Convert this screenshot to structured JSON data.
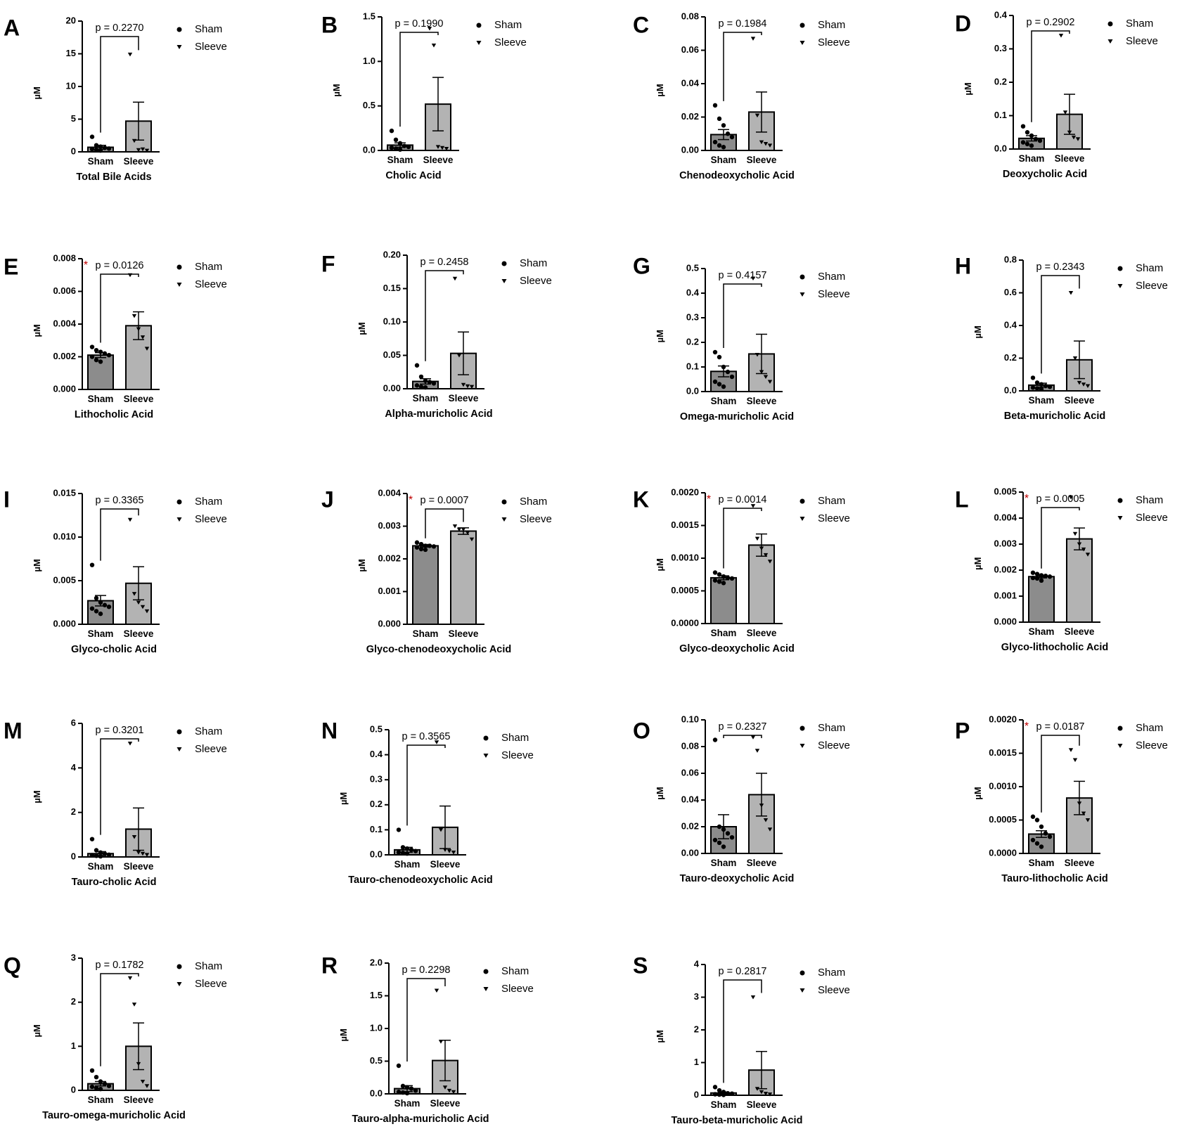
{
  "colors": {
    "sham_bar": "#8c8c8c",
    "sleeve_bar": "#b3b3b3",
    "axis": "#000000",
    "significance_star": "#c00000"
  },
  "legend": {
    "sham_label": "Sham",
    "sleeve_label": "Sleeve",
    "sham_marker": "circle",
    "sleeve_marker": "down-triangle"
  },
  "chart_data": [
    {
      "letter": "A",
      "type": "bar",
      "title": "Total Bile Acids",
      "ylabel": "µM",
      "categories": [
        "Sham",
        "Sleeve"
      ],
      "ylim": [
        0,
        20
      ],
      "yticks": [
        "0",
        "5",
        "10",
        "15",
        "20"
      ],
      "values": [
        0.7,
        4.7
      ],
      "sem": [
        0.3,
        2.9
      ],
      "p_label": "p = 0.2270",
      "significant": false,
      "points": {
        "Sham": [
          2.3,
          1.0,
          0.8,
          0.6,
          0.5,
          0.4,
          0.3,
          0.2
        ],
        "Sleeve": [
          14.9,
          1.7,
          0.3,
          0.4,
          0.2
        ]
      }
    },
    {
      "letter": "B",
      "type": "bar",
      "title": "Cholic Acid",
      "ylabel": "µM",
      "categories": [
        "Sham",
        "Sleeve"
      ],
      "ylim": [
        0,
        1.5
      ],
      "yticks": [
        "0.0",
        "0.5",
        "1.0",
        "1.5"
      ],
      "values": [
        0.06,
        0.52
      ],
      "sem": [
        0.025,
        0.3
      ],
      "p_label": "p = 0.1990",
      "significant": false,
      "points": {
        "Sham": [
          0.22,
          0.12,
          0.08,
          0.05,
          0.04,
          0.03,
          0.02,
          0.01
        ],
        "Sleeve": [
          1.37,
          1.18,
          0.04,
          0.03,
          0.02
        ]
      }
    },
    {
      "letter": "C",
      "type": "bar",
      "title": "Chenodeoxycholic Acid",
      "ylabel": "µM",
      "categories": [
        "Sham",
        "Sleeve"
      ],
      "ylim": [
        0,
        0.08
      ],
      "yticks": [
        "0.00",
        "0.02",
        "0.04",
        "0.06",
        "0.08"
      ],
      "values": [
        0.0095,
        0.023
      ],
      "sem": [
        0.003,
        0.012
      ],
      "p_label": "p = 0.1984",
      "significant": false,
      "points": {
        "Sham": [
          0.027,
          0.019,
          0.015,
          0.01,
          0.008,
          0.005,
          0.003,
          0.002
        ],
        "Sleeve": [
          0.067,
          0.021,
          0.005,
          0.004,
          0.003
        ]
      }
    },
    {
      "letter": "D",
      "type": "bar",
      "title": "Deoxycholic Acid",
      "ylabel": "µM",
      "categories": [
        "Sham",
        "Sleeve"
      ],
      "ylim": [
        0,
        0.4
      ],
      "yticks": [
        "0.0",
        "0.1",
        "0.2",
        "0.3",
        "0.4"
      ],
      "values": [
        0.032,
        0.104
      ],
      "sem": [
        0.008,
        0.06
      ],
      "p_label": "p = 0.2902",
      "significant": false,
      "points": {
        "Sham": [
          0.068,
          0.05,
          0.04,
          0.03,
          0.025,
          0.02,
          0.015,
          0.01
        ],
        "Sleeve": [
          0.34,
          0.11,
          0.05,
          0.035,
          0.03
        ]
      }
    },
    {
      "letter": "E",
      "type": "bar",
      "title": "Lithocholic Acid",
      "ylabel": "µM",
      "categories": [
        "Sham",
        "Sleeve"
      ],
      "ylim": [
        0,
        0.008
      ],
      "yticks": [
        "0.000",
        "0.002",
        "0.004",
        "0.006",
        "0.008"
      ],
      "values": [
        0.0021,
        0.0039
      ],
      "sem": [
        0.00015,
        0.00085
      ],
      "p_label": "p = 0.0126",
      "significant": true,
      "points": {
        "Sham": [
          0.0026,
          0.0024,
          0.0023,
          0.0022,
          0.0021,
          0.002,
          0.0018,
          0.0017
        ],
        "Sleeve": [
          0.007,
          0.0045,
          0.0037,
          0.0032,
          0.0025
        ]
      }
    },
    {
      "letter": "F",
      "type": "bar",
      "title": "Alpha-muricholic Acid",
      "ylabel": "µM",
      "categories": [
        "Sham",
        "Sleeve"
      ],
      "ylim": [
        0,
        0.2
      ],
      "yticks": [
        "0.00",
        "0.05",
        "0.10",
        "0.15",
        "0.20"
      ],
      "values": [
        0.011,
        0.053
      ],
      "sem": [
        0.004,
        0.032
      ],
      "p_label": "p = 0.2458",
      "significant": false,
      "points": {
        "Sham": [
          0.035,
          0.018,
          0.012,
          0.01,
          0.008,
          0.005,
          0.003,
          0.002
        ],
        "Sleeve": [
          0.165,
          0.05,
          0.006,
          0.004,
          0.003
        ]
      }
    },
    {
      "letter": "G",
      "type": "bar",
      "title": "Omega-muricholic Acid",
      "ylabel": "µM",
      "categories": [
        "Sham",
        "Sleeve"
      ],
      "ylim": [
        0,
        0.5
      ],
      "yticks": [
        "0.0",
        "0.1",
        "0.2",
        "0.3",
        "0.4",
        "0.5"
      ],
      "values": [
        0.082,
        0.153
      ],
      "sem": [
        0.022,
        0.08
      ],
      "p_label": "p = 0.4157",
      "significant": false,
      "points": {
        "Sham": [
          0.16,
          0.14,
          0.1,
          0.08,
          0.06,
          0.04,
          0.03,
          0.02
        ],
        "Sleeve": [
          0.46,
          0.15,
          0.08,
          0.06,
          0.04
        ]
      }
    },
    {
      "letter": "H",
      "type": "bar",
      "title": "Beta-muricholic Acid",
      "ylabel": "µM",
      "categories": [
        "Sham",
        "Sleeve"
      ],
      "ylim": [
        0,
        0.8
      ],
      "yticks": [
        "0.0",
        "0.2",
        "0.4",
        "0.6",
        "0.8"
      ],
      "values": [
        0.035,
        0.19
      ],
      "sem": [
        0.012,
        0.115
      ],
      "p_label": "p = 0.2343",
      "significant": false,
      "points": {
        "Sham": [
          0.08,
          0.05,
          0.04,
          0.03,
          0.025,
          0.02,
          0.015,
          0.01
        ],
        "Sleeve": [
          0.6,
          0.2,
          0.05,
          0.04,
          0.03
        ]
      }
    },
    {
      "letter": "I",
      "type": "bar",
      "title": "Glyco-cholic Acid",
      "ylabel": "µM",
      "categories": [
        "Sham",
        "Sleeve"
      ],
      "ylim": [
        0,
        0.015
      ],
      "yticks": [
        "0.000",
        "0.005",
        "0.010",
        "0.015"
      ],
      "values": [
        0.0027,
        0.0047
      ],
      "sem": [
        0.0006,
        0.0019
      ],
      "p_label": "p = 0.3365",
      "significant": false,
      "points": {
        "Sham": [
          0.0068,
          0.003,
          0.0025,
          0.0022,
          0.002,
          0.0018,
          0.0015,
          0.0012
        ],
        "Sleeve": [
          0.012,
          0.0035,
          0.0025,
          0.002,
          0.0015
        ]
      }
    },
    {
      "letter": "J",
      "type": "bar",
      "title": "Glyco-chenodeoxycholic Acid",
      "ylabel": "µM",
      "categories": [
        "Sham",
        "Sleeve"
      ],
      "ylim": [
        0,
        0.004
      ],
      "yticks": [
        "0.000",
        "0.001",
        "0.002",
        "0.003",
        "0.004"
      ],
      "values": [
        0.0024,
        0.00285
      ],
      "sem": [
        4e-05,
        0.0001
      ],
      "p_label": "p = 0.0007",
      "significant": true,
      "points": {
        "Sham": [
          0.0025,
          0.00245,
          0.0024,
          0.0024,
          0.00238,
          0.00235,
          0.0023,
          0.00228
        ],
        "Sleeve": [
          0.003,
          0.0029,
          0.0029,
          0.0028,
          0.0026
        ]
      }
    },
    {
      "letter": "K",
      "type": "bar",
      "title": "Glyco-deoxycholic Acid",
      "ylabel": "µM",
      "categories": [
        "Sham",
        "Sleeve"
      ],
      "ylim": [
        0,
        0.002
      ],
      "yticks": [
        "0.0000",
        "0.0005",
        "0.0010",
        "0.0015",
        "0.0020"
      ],
      "values": [
        0.0007,
        0.0012
      ],
      "sem": [
        3e-05,
        0.00017
      ],
      "p_label": "p = 0.0014",
      "significant": true,
      "points": {
        "Sham": [
          0.00078,
          0.00075,
          0.00072,
          0.0007,
          0.00069,
          0.00066,
          0.00064,
          0.00062
        ],
        "Sleeve": [
          0.0018,
          0.0013,
          0.00115,
          0.00105,
          0.00095
        ]
      }
    },
    {
      "letter": "L",
      "type": "bar",
      "title": "Glyco-lithocholic Acid",
      "ylabel": "µM",
      "categories": [
        "Sham",
        "Sleeve"
      ],
      "ylim": [
        0,
        0.005
      ],
      "yticks": [
        "0.000",
        "0.001",
        "0.002",
        "0.003",
        "0.004",
        "0.005"
      ],
      "values": [
        0.00175,
        0.0032
      ],
      "sem": [
        5e-05,
        0.00042
      ],
      "p_label": "p = 0.0005",
      "significant": true,
      "points": {
        "Sham": [
          0.0019,
          0.00185,
          0.0018,
          0.00178,
          0.00175,
          0.0017,
          0.00168,
          0.0016
        ],
        "Sleeve": [
          0.0048,
          0.0034,
          0.003,
          0.0028,
          0.0026
        ]
      }
    },
    {
      "letter": "M",
      "type": "bar",
      "title": "Tauro-cholic Acid",
      "ylabel": "µM",
      "categories": [
        "Sham",
        "Sleeve"
      ],
      "ylim": [
        0,
        6
      ],
      "yticks": [
        "0",
        "2",
        "4",
        "6"
      ],
      "values": [
        0.15,
        1.25
      ],
      "sem": [
        0.09,
        0.95
      ],
      "p_label": "p = 0.3201",
      "significant": false,
      "points": {
        "Sham": [
          0.8,
          0.3,
          0.2,
          0.15,
          0.1,
          0.08,
          0.05,
          0.03
        ],
        "Sleeve": [
          5.1,
          0.9,
          0.2,
          0.15,
          0.1
        ]
      }
    },
    {
      "letter": "N",
      "type": "bar",
      "title": "Tauro-chenodeoxycholic Acid",
      "ylabel": "µM",
      "categories": [
        "Sham",
        "Sleeve"
      ],
      "ylim": [
        0,
        0.5
      ],
      "yticks": [
        "0.0",
        "0.1",
        "0.2",
        "0.3",
        "0.4",
        "0.5"
      ],
      "values": [
        0.02,
        0.11
      ],
      "sem": [
        0.01,
        0.085
      ],
      "p_label": "p = 0.3565",
      "significant": false,
      "points": {
        "Sham": [
          0.1,
          0.03,
          0.025,
          0.02,
          0.015,
          0.01,
          0.008,
          0.005
        ],
        "Sleeve": [
          0.45,
          0.1,
          0.02,
          0.015,
          0.01
        ]
      }
    },
    {
      "letter": "O",
      "type": "bar",
      "title": "Tauro-deoxycholic Acid",
      "ylabel": "µM",
      "categories": [
        "Sham",
        "Sleeve"
      ],
      "ylim": [
        0,
        0.1
      ],
      "yticks": [
        "0.00",
        "0.02",
        "0.04",
        "0.06",
        "0.08",
        "0.10"
      ],
      "values": [
        0.02,
        0.044
      ],
      "sem": [
        0.009,
        0.016
      ],
      "p_label": "p = 0.2327",
      "significant": false,
      "points": {
        "Sham": [
          0.085,
          0.02,
          0.018,
          0.015,
          0.012,
          0.01,
          0.008,
          0.005
        ],
        "Sleeve": [
          0.087,
          0.077,
          0.036,
          0.025,
          0.018
        ]
      }
    },
    {
      "letter": "P",
      "type": "bar",
      "title": "Tauro-lithocholic Acid",
      "ylabel": "µM",
      "categories": [
        "Sham",
        "Sleeve"
      ],
      "ylim": [
        0,
        0.002
      ],
      "yticks": [
        "0.0000",
        "0.0005",
        "0.0010",
        "0.0015",
        "0.0020"
      ],
      "values": [
        0.00029,
        0.00083
      ],
      "sem": [
        5e-05,
        0.00025
      ],
      "p_label": "p = 0.0187",
      "significant": true,
      "points": {
        "Sham": [
          0.00055,
          0.0005,
          0.0004,
          0.0003,
          0.00025,
          0.0002,
          0.00015,
          0.0001
        ],
        "Sleeve": [
          0.00155,
          0.0014,
          0.00075,
          0.0006,
          0.0005
        ]
      }
    },
    {
      "letter": "Q",
      "type": "bar",
      "title": "Tauro-omega-muricholic Acid",
      "ylabel": "µM",
      "categories": [
        "Sham",
        "Sleeve"
      ],
      "ylim": [
        0,
        3
      ],
      "yticks": [
        "0",
        "1",
        "2",
        "3"
      ],
      "values": [
        0.15,
        1.0
      ],
      "sem": [
        0.05,
        0.53
      ],
      "p_label": "p = 0.1782",
      "significant": false,
      "points": {
        "Sham": [
          0.45,
          0.3,
          0.2,
          0.15,
          0.1,
          0.08,
          0.05,
          0.03
        ],
        "Sleeve": [
          2.55,
          1.95,
          0.6,
          0.2,
          0.1
        ]
      }
    },
    {
      "letter": "R",
      "type": "bar",
      "title": "Tauro-alpha-muricholic Acid",
      "ylabel": "µM",
      "categories": [
        "Sham",
        "Sleeve"
      ],
      "ylim": [
        0,
        2
      ],
      "yticks": [
        "0.0",
        "0.5",
        "1.0",
        "1.5",
        "2.0"
      ],
      "values": [
        0.08,
        0.51
      ],
      "sem": [
        0.045,
        0.31
      ],
      "p_label": "p = 0.2298",
      "significant": false,
      "points": {
        "Sham": [
          0.43,
          0.12,
          0.1,
          0.08,
          0.05,
          0.03,
          0.02,
          0.01
        ],
        "Sleeve": [
          1.58,
          0.8,
          0.1,
          0.05,
          0.03
        ]
      }
    },
    {
      "letter": "S",
      "type": "bar",
      "title": "Tauro-beta-muricholic Acid",
      "ylabel": "µM",
      "categories": [
        "Sham",
        "Sleeve"
      ],
      "ylim": [
        0,
        4
      ],
      "yticks": [
        "0",
        "1",
        "2",
        "3",
        "4"
      ],
      "values": [
        0.07,
        0.77
      ],
      "sem": [
        0.03,
        0.57
      ],
      "p_label": "p = 0.2817",
      "significant": false,
      "points": {
        "Sham": [
          0.25,
          0.15,
          0.1,
          0.06,
          0.05,
          0.03,
          0.02,
          0.01
        ],
        "Sleeve": [
          3.0,
          0.2,
          0.1,
          0.05,
          0.03
        ]
      }
    }
  ]
}
